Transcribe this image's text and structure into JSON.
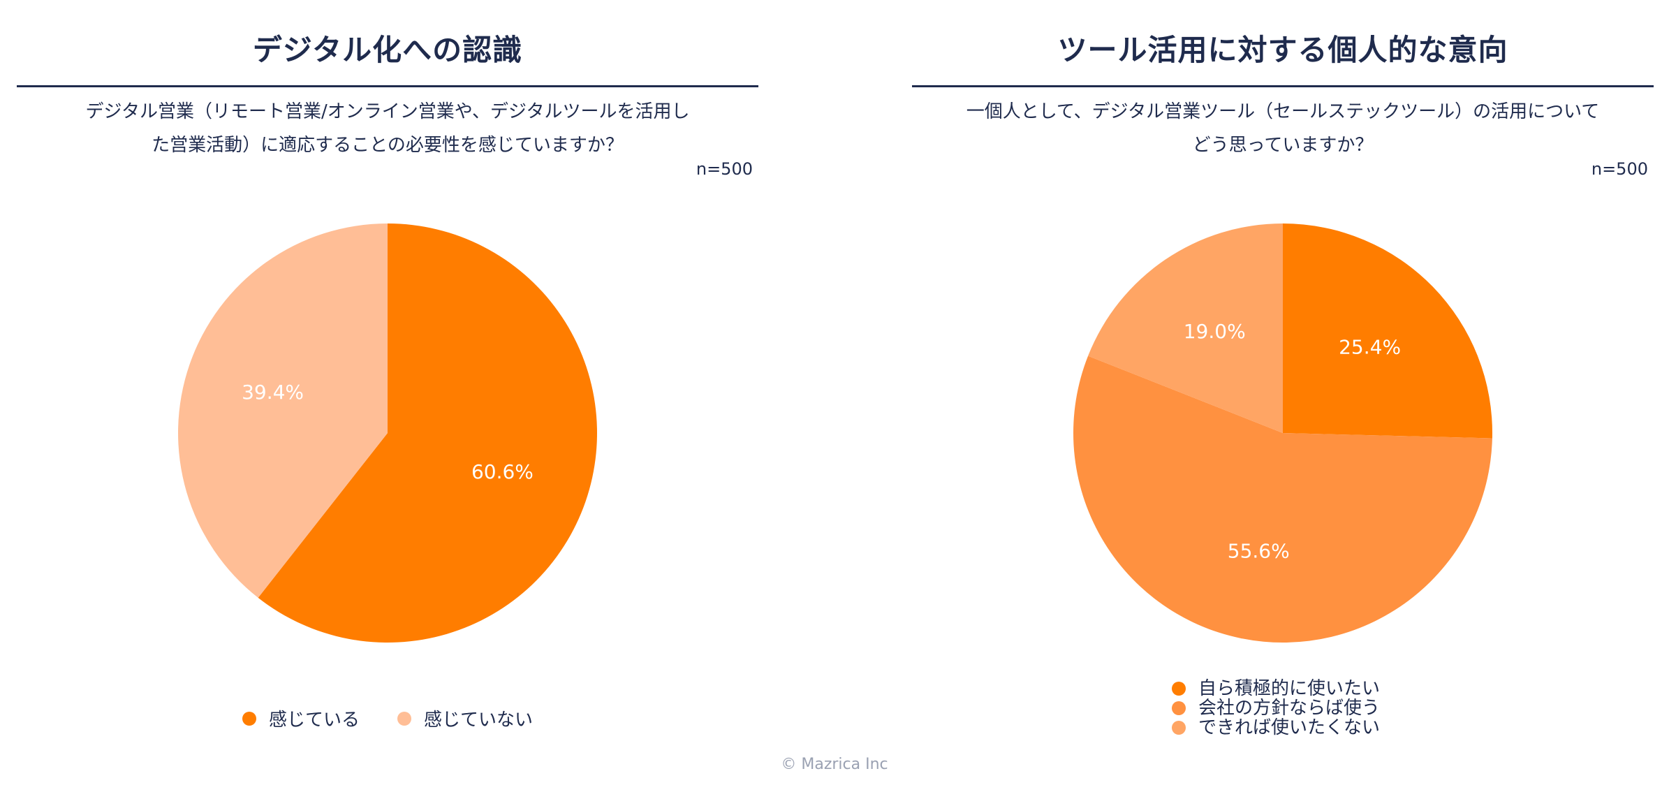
{
  "chart_data": [
    {
      "type": "pie",
      "title": "デジタル化への認識",
      "question_lines": [
        "デジタル営業（リモート営業/オンライン営業や、デジタルツールを活用し",
        "た営業活動）に適応することの必要性を感じていますか？"
      ],
      "sample_size": "n=500",
      "slices": [
        {
          "label": "感じている",
          "value": 60.6,
          "display": "60.6%",
          "color": "#ff7d00"
        },
        {
          "label": "感じていない",
          "value": 39.4,
          "display": "39.4%",
          "color": "#ffbe96"
        }
      ],
      "legend_position": "bottom"
    },
    {
      "type": "pie",
      "title": "ツール活用に対する個人的な意向",
      "question_lines": [
        "一個人として、デジタル営業ツール（セールステックツール）の活用について",
        "どう思っていますか？"
      ],
      "sample_size": "n=500",
      "slices": [
        {
          "label": "自ら積極的に使いたい",
          "value": 25.4,
          "display": "25.4%",
          "color": "#ff7d00"
        },
        {
          "label": "会社の方針ならば使う",
          "value": 55.6,
          "display": "55.6%",
          "color": "#ff9140"
        },
        {
          "label": "できれば使いたくない",
          "value": 19.0,
          "display": "19.0%",
          "color": "#ffa564"
        }
      ],
      "legend_position": "bottom"
    }
  ],
  "footer": "© Mazrica Inc"
}
